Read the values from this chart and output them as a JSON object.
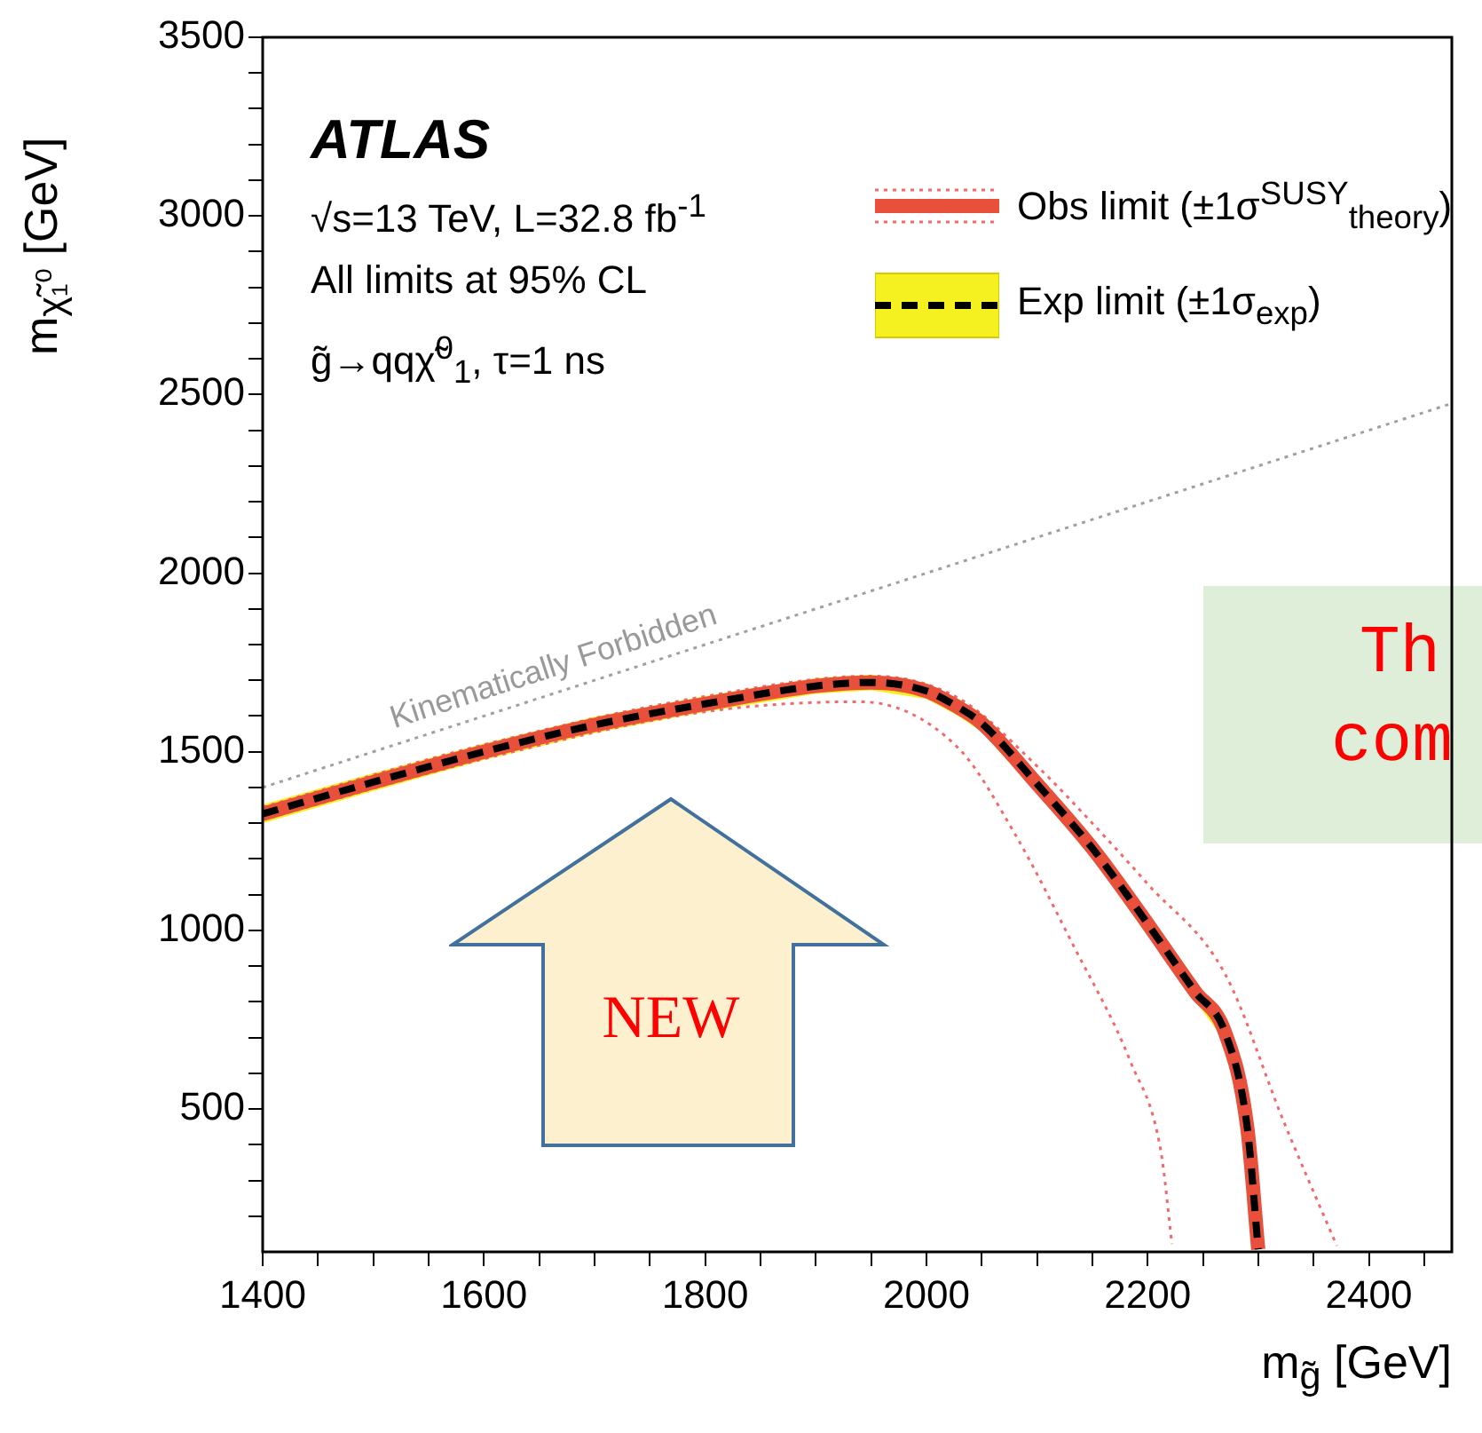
{
  "chart_data": {
    "type": "line",
    "xlabel": "m$_{g̃}$ [GeV]",
    "ylabel": "m$_{χ̃₁⁰}$ [GeV]",
    "xlim": [
      1400,
      2475
    ],
    "ylim": [
      100,
      3500
    ],
    "xticks": [
      1400,
      {
        "value": 1450,
        "label": null
      },
      {
        "value": 1500,
        "label": null
      },
      {
        "value": 1550,
        "label": null
      },
      1600,
      {
        "value": 1650,
        "label": null
      },
      {
        "value": 1700,
        "label": null
      },
      {
        "value": 1750,
        "label": null
      },
      1800,
      {
        "value": 1850,
        "label": null
      },
      {
        "value": 1900,
        "label": null
      },
      {
        "value": 1950,
        "label": null
      },
      2000,
      {
        "value": 2050,
        "label": null
      },
      {
        "value": 2100,
        "label": null
      },
      {
        "value": 2150,
        "label": null
      },
      2200,
      {
        "value": 2250,
        "label": null
      },
      {
        "value": 2300,
        "label": null
      },
      {
        "value": 2350,
        "label": null
      },
      2400,
      {
        "value": 2450,
        "label": null
      }
    ],
    "yticks": [
      {
        "value": 200,
        "label": null
      },
      {
        "value": 300,
        "label": null
      },
      {
        "value": 400,
        "label": null
      },
      500,
      {
        "value": 600,
        "label": null
      },
      {
        "value": 700,
        "label": null
      },
      {
        "value": 800,
        "label": null
      },
      {
        "value": 900,
        "label": null
      },
      1000,
      {
        "value": 1100,
        "label": null
      },
      {
        "value": 1200,
        "label": null
      },
      {
        "value": 1300,
        "label": null
      },
      {
        "value": 1400,
        "label": null
      },
      1500,
      {
        "value": 1600,
        "label": null
      },
      {
        "value": 1700,
        "label": null
      },
      {
        "value": 1800,
        "label": null
      },
      {
        "value": 1900,
        "label": null
      },
      2000,
      {
        "value": 2100,
        "label": null
      },
      {
        "value": 2200,
        "label": null
      },
      {
        "value": 2300,
        "label": null
      },
      {
        "value": 2400,
        "label": null
      },
      2500,
      {
        "value": 2600,
        "label": null
      },
      {
        "value": 2700,
        "label": null
      },
      {
        "value": 2800,
        "label": null
      },
      {
        "value": 2900,
        "label": null
      },
      3000,
      {
        "value": 3100,
        "label": null
      },
      {
        "value": 3200,
        "label": null
      },
      {
        "value": 3300,
        "label": null
      },
      {
        "value": 3400,
        "label": null
      },
      3500
    ],
    "legend": "top right",
    "marker": "none",
    "annotations": [
      "ATLAS",
      "√s=13 TeV, L=32.8 fb$^{-1}$",
      "All limits at 95% CL",
      "g̃→qqχ̃$^{0}$$_{1}$, τ=1 ns",
      {
        "text": "Kinematically Forbidden",
        "x": 1670,
        "y": 1670
      },
      "NEW",
      "Th",
      "com"
    ],
    "series": [
      {
        "type": "line",
        "color": "#a0a0a0",
        "line_style": "dotted",
        "x": [
          1400,
          2475
        ],
        "values": [
          1400,
          2475
        ]
      },
      {
        "type": "line",
        "color": "#f06a6a",
        "line_style": "dotted",
        "x": [
          1400,
          1600,
          1800,
          1940,
          2029,
          2080,
          2132,
          2185,
          2212,
          2222
        ],
        "values": [
          1310,
          1480,
          1612,
          1640,
          1510,
          1270,
          963,
          629,
          381,
          122
        ]
      },
      {
        "type": "line",
        "color": "#f06a6a",
        "line_style": "dotted",
        "x": [
          1400,
          1600,
          1800,
          1950,
          2029,
          2100,
          2150,
          2200,
          2270,
          2323,
          2371
        ],
        "values": [
          1345,
          1520,
          1655,
          1712,
          1650,
          1460,
          1300,
          1130,
          878,
          465,
          117
        ]
      },
      {
        "type": "line",
        "name": "Obs limit (±1σ$^{SUSY}$$_{theory}$)",
        "color": "#e8503c",
        "line_style": "solid",
        "x": [
          1400,
          1500,
          1600,
          1700,
          1800,
          1900,
          1950,
          2000,
          2029,
          2050,
          2100,
          2150,
          2190,
          2243,
          2270,
          2290,
          2300
        ],
        "values": [
          1326,
          1415,
          1500,
          1575,
          1634,
          1684,
          1694,
          1670,
          1624,
          1580,
          1410,
          1230,
          1062,
          828,
          714,
          450,
          107
        ]
      },
      {
        "type": "line",
        "name": "Exp limit (±1σ$_{exp}$)",
        "color": "#000000",
        "line_style": "dashed",
        "x": [
          1400,
          1500,
          1600,
          1700,
          1800,
          1900,
          1950,
          2000,
          2029,
          2050,
          2100,
          2150,
          2190,
          2243,
          2270,
          2290,
          2300
        ],
        "values": [
          1326,
          1415,
          1500,
          1575,
          1634,
          1684,
          1694,
          1670,
          1624,
          1580,
          1410,
          1230,
          1062,
          828,
          714,
          450,
          107
        ],
        "lower": [
          1300,
          1390,
          1477,
          1552,
          1612,
          1662,
          1672,
          1648,
          1600,
          1555,
          1385,
          1205,
          1037,
          803,
          689,
          420,
          107
        ],
        "upper": [
          1352,
          1440,
          1523,
          1598,
          1656,
          1706,
          1716,
          1692,
          1648,
          1605,
          1435,
          1255,
          1087,
          853,
          739,
          480,
          107
        ]
      }
    ]
  }
}
